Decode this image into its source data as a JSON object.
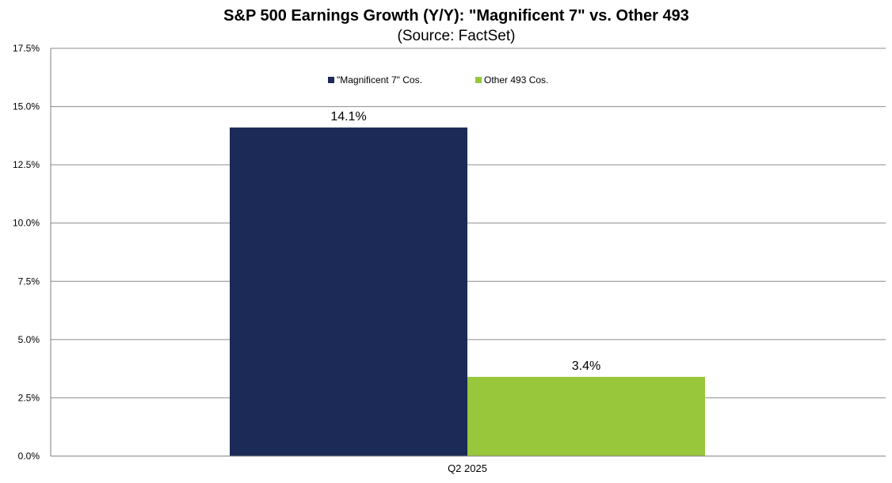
{
  "chart_data": {
    "type": "bar",
    "title": "S&P 500 Earnings Growth (Y/Y): \"Magnificent 7\" vs. Other 493",
    "subtitle": "(Source: FactSet)",
    "categories": [
      "Q2 2025"
    ],
    "series": [
      {
        "name": "\"Magnificent 7\" Cos.",
        "values": [
          14.1
        ],
        "color": "#1b2a56",
        "label": "14.1%"
      },
      {
        "name": "Other 493 Cos.",
        "values": [
          3.4
        ],
        "color": "#98c73c",
        "label": "3.4%"
      }
    ],
    "ylim": [
      0,
      17.5
    ],
    "yticks": [
      {
        "value": 0,
        "label": "0.0%"
      },
      {
        "value": 2.5,
        "label": "2.5%"
      },
      {
        "value": 5,
        "label": "5.0%"
      },
      {
        "value": 7.5,
        "label": "7.5%"
      },
      {
        "value": 10,
        "label": "10.0%"
      },
      {
        "value": 12.5,
        "label": "12.5%"
      },
      {
        "value": 15,
        "label": "15.0%"
      },
      {
        "value": 17.5,
        "label": "17.5%"
      }
    ],
    "grid": true,
    "legend_position": "top-center",
    "xlabel": "",
    "ylabel": ""
  }
}
